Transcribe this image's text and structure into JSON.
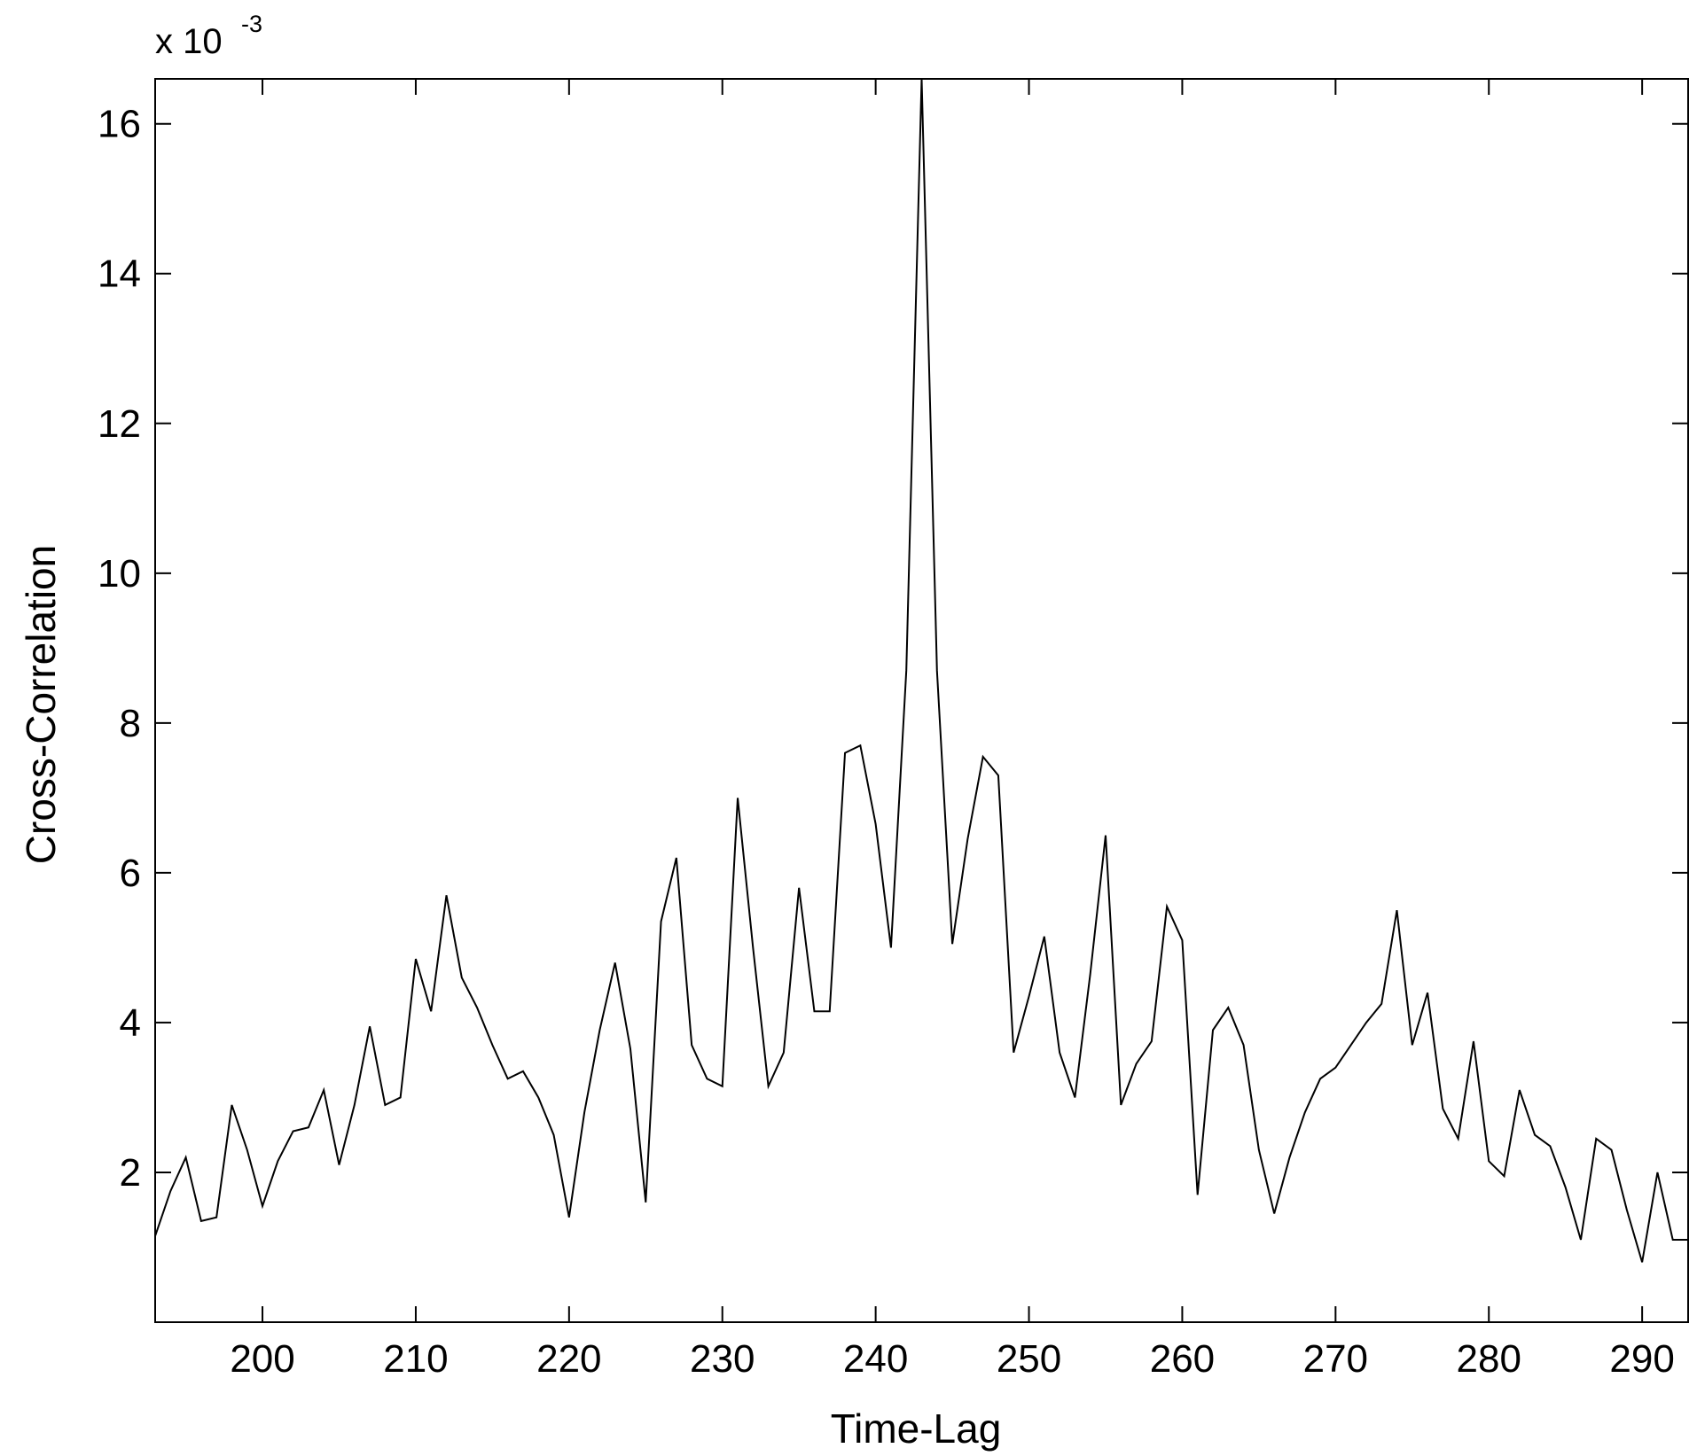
{
  "chart_data": {
    "type": "line",
    "x_label": "Time-Lag",
    "y_label": "Cross-Correlation",
    "y_multiplier": "x 10",
    "y_exponent": "-3",
    "color": "#000000",
    "x": [
      193,
      194,
      195,
      196,
      197,
      198,
      199,
      200,
      201,
      202,
      203,
      204,
      205,
      206,
      207,
      208,
      209,
      210,
      211,
      212,
      213,
      214,
      215,
      216,
      217,
      218,
      219,
      220,
      221,
      222,
      223,
      224,
      225,
      226,
      227,
      228,
      229,
      230,
      231,
      232,
      233,
      234,
      235,
      236,
      237,
      238,
      239,
      240,
      241,
      242,
      243,
      244,
      245,
      246,
      247,
      248,
      249,
      250,
      251,
      252,
      253,
      254,
      255,
      256,
      257,
      258,
      259,
      260,
      261,
      262,
      263,
      264,
      265,
      266,
      267,
      268,
      269,
      270,
      271,
      272,
      273,
      274,
      275,
      276,
      277,
      278,
      279,
      280,
      281,
      282,
      283,
      284,
      285,
      286,
      287,
      288,
      289,
      290,
      291,
      292,
      293
    ],
    "values": [
      1.15,
      1.75,
      2.2,
      1.35,
      1.4,
      2.9,
      2.3,
      1.55,
      2.15,
      2.55,
      2.6,
      3.1,
      2.1,
      2.9,
      3.95,
      2.9,
      3.0,
      4.85,
      4.15,
      5.7,
      4.6,
      4.2,
      3.7,
      3.25,
      3.35,
      3.0,
      2.5,
      1.4,
      2.8,
      3.9,
      4.8,
      3.65,
      1.6,
      5.35,
      6.2,
      3.7,
      3.25,
      3.15,
      7.0,
      5.0,
      3.15,
      3.6,
      5.8,
      4.15,
      4.15,
      7.6,
      7.7,
      6.65,
      5.0,
      8.7,
      16.6,
      8.7,
      5.05,
      6.45,
      7.55,
      7.3,
      3.6,
      4.35,
      5.15,
      3.6,
      3.0,
      4.65,
      6.5,
      2.9,
      3.45,
      3.75,
      5.55,
      5.1,
      1.7,
      3.9,
      4.2,
      3.7,
      2.3,
      1.45,
      2.2,
      2.8,
      3.25,
      3.4,
      3.7,
      4.0,
      4.25,
      5.5,
      3.7,
      4.4,
      2.85,
      2.45,
      3.75,
      2.15,
      1.95,
      3.1,
      2.5,
      2.35,
      1.8,
      1.1,
      2.45,
      2.3,
      1.5,
      0.8,
      2.0,
      1.1,
      1.1
    ],
    "xlim": [
      193,
      293
    ],
    "ylim": [
      0,
      16.6
    ],
    "xticks": [
      200,
      210,
      220,
      230,
      240,
      250,
      260,
      270,
      280,
      290
    ],
    "yticks": [
      2,
      4,
      6,
      8,
      10,
      12,
      14,
      16
    ]
  }
}
